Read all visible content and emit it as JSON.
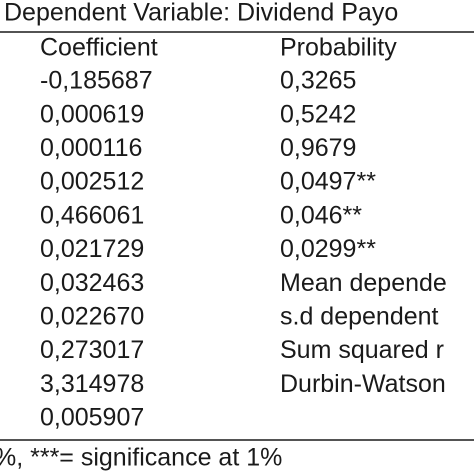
{
  "header": {
    "title": "Dependent Variable: Dividend Payo"
  },
  "table": {
    "columns": [
      "Coefficient",
      "Probability"
    ],
    "rows": [
      [
        "-0,185687",
        "0,3265"
      ],
      [
        "0,000619",
        "0,5242"
      ],
      [
        "0,000116",
        "0,9679"
      ],
      [
        "0,002512",
        "0,0497**"
      ],
      [
        "0,466061",
        "0,046**"
      ],
      [
        "0,021729",
        "0,0299**"
      ],
      [
        "0,032463",
        "Mean depende"
      ],
      [
        "0,022670",
        "s.d dependent"
      ],
      [
        "0,273017",
        "Sum squared r"
      ],
      [
        "3,314978",
        "Durbin-Watson"
      ],
      [
        "0,005907"
      ]
    ]
  },
  "footnote": "%, ***= significance at 1%"
}
